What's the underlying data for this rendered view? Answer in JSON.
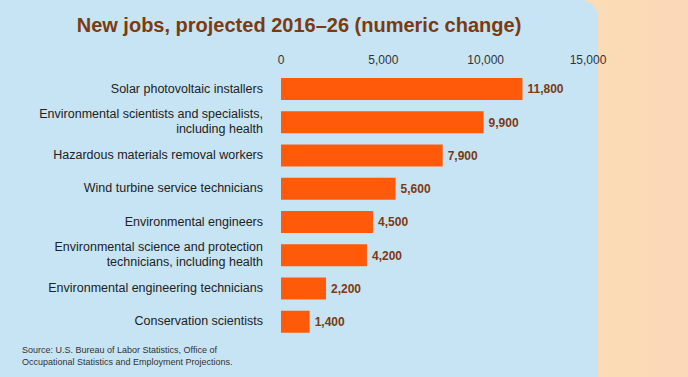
{
  "chart_data": {
    "type": "bar",
    "title": "New jobs, projected 2016–26 (numeric change)",
    "orientation": "horizontal",
    "categories": [
      "Solar photovoltaic installers",
      "Environmental scientists and specialists, including health",
      "Hazardous materials removal workers",
      "Wind turbine service technicians",
      "Environmental engineers",
      "Environmental science and protection technicians, including health",
      "Environmental engineering technicians",
      "Conservation scientists"
    ],
    "values": [
      11800,
      9900,
      7900,
      5600,
      4500,
      4200,
      2200,
      1400
    ],
    "value_labels": [
      "11,800",
      "9,900",
      "7,900",
      "5,600",
      "4,500",
      "4,200",
      "2,200",
      "1,400"
    ],
    "data_labels": true,
    "color": "#ff5a0a",
    "xlim": [
      0,
      15000
    ],
    "xticks": [
      0,
      {
        "value": 5000,
        "label": "5,000"
      },
      {
        "value": 10000,
        "label": "10,000"
      },
      {
        "value": 15000,
        "label": "15,000"
      }
    ],
    "grid": false,
    "source": "Source: U.S. Bureau of Labor Statistics, Office of Occupational Statistics and Employment Projections."
  }
}
